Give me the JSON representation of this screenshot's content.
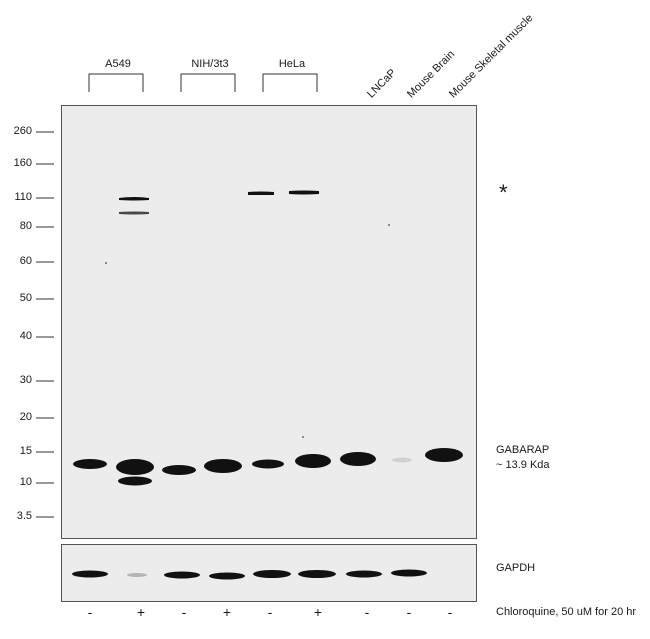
{
  "groups": [
    {
      "label": "A549"
    },
    {
      "label": "NIH/3t3"
    },
    {
      "label": "HeLa"
    }
  ],
  "single_lanes": [
    {
      "label": "LNCaP"
    },
    {
      "label": "Mouse Brain"
    },
    {
      "label": "Mouse Skeletal muscle"
    }
  ],
  "mw_markers": [
    "260",
    "160",
    "110",
    "80",
    "60",
    "50",
    "40",
    "30",
    "20",
    "15",
    "10",
    "3.5"
  ],
  "asterisk": "*",
  "target_label": "GABARAP",
  "target_size": "~ 13.9 Kda",
  "loading_control": "GAPDH",
  "treatment_signs": [
    "-",
    "+",
    "-",
    "+",
    "-",
    "+",
    "-",
    "-",
    "-"
  ],
  "treatment_label": "Chloroquine, 50 uM for 20 hr",
  "colors": {
    "background": "#ececec",
    "band": "#111111",
    "border": "#555555"
  }
}
